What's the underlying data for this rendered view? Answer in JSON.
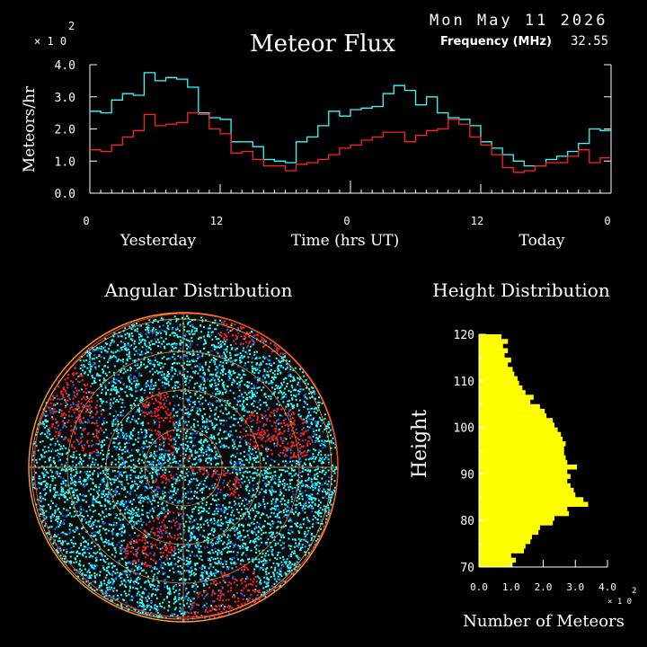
{
  "header": {
    "title": "Meteor Flux",
    "date": "Mon May 11 2026",
    "frequency_label": "Frequency (MHz)",
    "frequency_value": "32.55",
    "y_multiplier": "× 1 0",
    "y_exponent": "2"
  },
  "flux_panel": {
    "ylabel": "Meteors/hr",
    "xlabel": "Time (hrs UT)",
    "day_left": "Yesterday",
    "day_right": "Today"
  },
  "angular_panel": {
    "title": "Angular Distribution"
  },
  "height_panel": {
    "title": "Height Distribution",
    "ylabel": "Height",
    "xlabel": "Number of Meteors",
    "x_multiplier": "× 1 0",
    "x_exponent": "2"
  },
  "colors": {
    "cyan": "#33ffff",
    "red": "#ff2222",
    "yellow": "#ffff00",
    "axis": "#ffffff"
  },
  "chart_data": [
    {
      "type": "line",
      "title": "Meteor Flux",
      "ylabel": "Meteors/hr",
      "xlabel": "Time (hrs UT)",
      "y_scale": "x 10^2",
      "ylim": [
        0,
        4
      ],
      "xlim": [
        0,
        48
      ],
      "xticks": [
        0,
        12,
        24,
        36,
        48
      ],
      "xtick_labels": [
        "0",
        "12",
        "0",
        "12",
        "0"
      ],
      "yticks": [
        0,
        1,
        2,
        3,
        4
      ],
      "ytick_labels": [
        "0.0",
        "1.0",
        "2.0",
        "3.0",
        "4.0"
      ],
      "grid": false,
      "series": [
        {
          "color": "#33ffff",
          "step": true,
          "values": [
            2.55,
            2.5,
            2.9,
            3.1,
            3.05,
            3.75,
            3.5,
            3.6,
            3.55,
            3.3,
            2.5,
            2.35,
            2.3,
            1.6,
            1.6,
            1.45,
            1.05,
            1.0,
            0.95,
            1.6,
            1.75,
            2.1,
            2.55,
            2.4,
            2.6,
            2.65,
            2.7,
            3.1,
            3.35,
            3.2,
            2.75,
            3.0,
            2.5,
            2.35,
            2.3,
            2.1,
            1.6,
            1.4,
            1.2,
            1.0,
            0.85,
            0.85,
            1.05,
            1.15,
            1.3,
            1.55,
            2.0,
            1.95
          ]
        },
        {
          "color": "#ff2222",
          "step": true,
          "values": [
            1.35,
            1.3,
            1.5,
            1.75,
            1.95,
            2.45,
            2.1,
            2.15,
            2.2,
            2.5,
            2.45,
            2.0,
            1.85,
            1.25,
            1.3,
            1.05,
            0.85,
            0.85,
            0.7,
            0.9,
            0.95,
            1.05,
            1.2,
            1.4,
            1.5,
            1.65,
            1.75,
            1.9,
            1.9,
            1.6,
            1.8,
            1.95,
            2.0,
            2.3,
            2.15,
            1.75,
            1.5,
            1.2,
            0.8,
            0.65,
            0.7,
            0.85,
            0.95,
            0.95,
            1.15,
            1.35,
            0.95,
            1.1
          ]
        }
      ]
    },
    {
      "type": "scatter",
      "title": "Angular Distribution",
      "projection": "polar sky map (circle)",
      "series": [
        {
          "name": "",
          "color": "#33ffff"
        },
        {
          "name": "",
          "color": "#ff2222"
        }
      ]
    },
    {
      "type": "bar",
      "orientation": "horizontal",
      "title": "Height Distribution",
      "ylabel": "Height",
      "xlabel": "Number of Meteors",
      "x_scale": "x 10^2",
      "xlim": [
        0,
        4
      ],
      "ylim": [
        70,
        120
      ],
      "xticks": [
        0,
        1,
        2,
        3,
        4
      ],
      "xtick_labels": [
        "0.0",
        "1.0",
        "2.0",
        "3.0",
        "4.0"
      ],
      "yticks": [
        70,
        80,
        90,
        100,
        110,
        120
      ],
      "color": "#ffff00",
      "heights": [
        70,
        71,
        72,
        73,
        74,
        75,
        76,
        77,
        78,
        79,
        80,
        81,
        82,
        83,
        84,
        85,
        86,
        87,
        88,
        89,
        90,
        91,
        92,
        93,
        94,
        95,
        96,
        97,
        98,
        99,
        100,
        101,
        102,
        103,
        104,
        105,
        106,
        107,
        108,
        109,
        110,
        111,
        112,
        113,
        114,
        115,
        116,
        117,
        118,
        119
      ],
      "values": [
        1.05,
        1.15,
        1.0,
        1.4,
        1.45,
        1.6,
        1.65,
        1.85,
        1.9,
        2.3,
        2.35,
        2.8,
        2.75,
        3.4,
        3.25,
        3.0,
        2.95,
        2.85,
        2.75,
        2.85,
        2.75,
        3.05,
        2.75,
        2.7,
        2.65,
        2.65,
        2.7,
        2.6,
        2.55,
        2.45,
        2.35,
        2.3,
        2.1,
        2.05,
        1.9,
        1.6,
        1.7,
        1.45,
        1.35,
        1.25,
        1.2,
        1.1,
        1.05,
        0.9,
        1.0,
        0.8,
        0.9,
        0.75,
        0.9,
        0.7
      ]
    }
  ]
}
